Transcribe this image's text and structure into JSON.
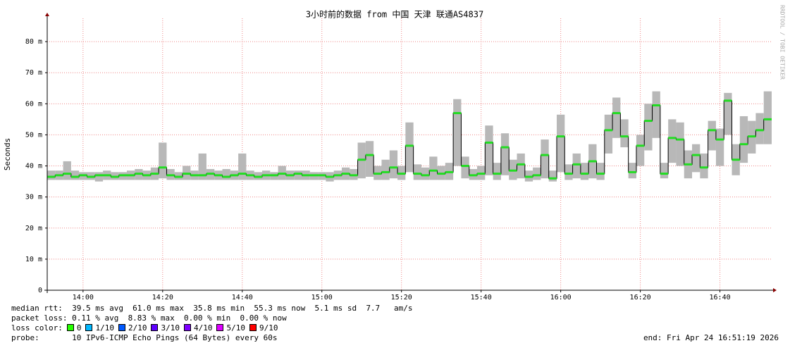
{
  "chart_data": {
    "type": "smokeping",
    "title": "3小时前的数据 from  中国 天津 联通AS4837",
    "y_label": "Seconds",
    "watermark": "RRDTOOL / TOBI OETIKER",
    "xlim": [
      "13:51",
      "16:53"
    ],
    "xticks": [
      "14:00",
      "14:20",
      "14:40",
      "15:00",
      "15:20",
      "15:40",
      "16:00",
      "16:20",
      "16:40"
    ],
    "ylim": [
      0,
      87.5
    ],
    "yticks": [
      {
        "value": 0,
        "label": "0"
      },
      {
        "value": 10,
        "label": "10 m"
      },
      {
        "value": 20,
        "label": "20 m"
      },
      {
        "value": 30,
        "label": "30 m"
      },
      {
        "value": 40,
        "label": "40 m"
      },
      {
        "value": 50,
        "label": "50 m"
      },
      {
        "value": 60,
        "label": "60 m"
      },
      {
        "value": 70,
        "label": "70 m"
      },
      {
        "value": 80,
        "label": "80 m"
      }
    ],
    "grid": true,
    "x": [
      "13:52",
      "13:54",
      "13:56",
      "13:58",
      "14:00",
      "14:02",
      "14:04",
      "14:06",
      "14:08",
      "14:10",
      "14:12",
      "14:14",
      "14:16",
      "14:18",
      "14:20",
      "14:22",
      "14:24",
      "14:26",
      "14:28",
      "14:30",
      "14:32",
      "14:34",
      "14:36",
      "14:38",
      "14:40",
      "14:42",
      "14:44",
      "14:46",
      "14:48",
      "14:50",
      "14:52",
      "14:54",
      "14:56",
      "14:58",
      "15:00",
      "15:02",
      "15:04",
      "15:06",
      "15:08",
      "15:10",
      "15:12",
      "15:14",
      "15:16",
      "15:18",
      "15:20",
      "15:22",
      "15:24",
      "15:26",
      "15:28",
      "15:30",
      "15:32",
      "15:34",
      "15:36",
      "15:38",
      "15:40",
      "15:42",
      "15:44",
      "15:46",
      "15:48",
      "15:50",
      "15:52",
      "15:54",
      "15:56",
      "15:58",
      "16:00",
      "16:02",
      "16:04",
      "16:06",
      "16:08",
      "16:10",
      "16:12",
      "16:14",
      "16:16",
      "16:18",
      "16:20",
      "16:22",
      "16:24",
      "16:26",
      "16:28",
      "16:30",
      "16:32",
      "16:34",
      "16:36",
      "16:38",
      "16:40",
      "16:42",
      "16:44",
      "16:46",
      "16:48",
      "16:50",
      "16:52"
    ],
    "median": {
      "color": "#22dd22",
      "line_color": "#000000",
      "values": [
        36.5,
        37,
        37.5,
        36.5,
        37,
        36.5,
        37,
        37,
        36.5,
        37,
        37,
        37.5,
        37,
        37.5,
        39.5,
        37,
        36.5,
        37.5,
        37,
        37,
        37.5,
        37,
        36.5,
        37,
        37.5,
        37,
        36.5,
        37,
        37,
        37.5,
        37,
        37.5,
        37,
        37,
        37,
        36.5,
        37,
        37.5,
        37,
        42,
        43.5,
        37.5,
        38,
        39.5,
        37.5,
        46.5,
        37.5,
        37,
        38.5,
        37.5,
        38,
        57,
        40,
        37,
        37.5,
        47.5,
        37.5,
        46,
        38.5,
        40.5,
        36.5,
        37,
        43.5,
        36,
        49.5,
        37.5,
        40.5,
        37.5,
        41.5,
        37.5,
        51.5,
        57,
        49.5,
        38,
        46.5,
        54.5,
        59.5,
        37.5,
        49,
        48.5,
        40.5,
        43.5,
        39.5,
        51.5,
        48.5,
        61,
        42,
        47,
        49.5,
        51.5,
        55
      ]
    },
    "smoke": {
      "color": "#b8b8b8",
      "min": [
        35.5,
        35.5,
        35.5,
        35.5,
        35.5,
        35.5,
        35,
        35.5,
        35.5,
        35.5,
        35.5,
        35.5,
        35.5,
        35.5,
        36,
        35.5,
        35.5,
        35.5,
        35.5,
        35.5,
        35.5,
        35.5,
        35.5,
        35.5,
        35.5,
        35.5,
        35.5,
        35.5,
        35.5,
        35.5,
        35.5,
        35.5,
        35.5,
        35.5,
        35.5,
        35,
        35.5,
        35.5,
        35.5,
        36,
        36.5,
        35.5,
        35.5,
        36,
        35.5,
        38,
        35.5,
        35.5,
        35.5,
        35.5,
        35.5,
        40,
        36,
        35.5,
        35.5,
        37,
        35.5,
        37,
        35.5,
        36,
        35,
        35.5,
        36,
        35,
        38,
        35.5,
        36,
        35.5,
        36,
        35.5,
        44,
        49,
        46,
        36,
        40,
        45,
        49,
        36,
        41,
        40,
        36,
        38,
        36,
        45,
        40,
        50,
        37,
        41,
        44,
        47,
        47
      ],
      "max": [
        38.5,
        38.5,
        41.5,
        38.5,
        38,
        38,
        38,
        38.5,
        38,
        38,
        38.5,
        39,
        38.5,
        39.5,
        47.5,
        39,
        38,
        40,
        38.5,
        44,
        39,
        38.5,
        39,
        38.5,
        44,
        38.5,
        38,
        38.5,
        38,
        40,
        38.5,
        38.5,
        38.5,
        38,
        38,
        38,
        38.5,
        39.5,
        39,
        47.5,
        48,
        40,
        42,
        45,
        40,
        54,
        40.5,
        39.5,
        43,
        40,
        41,
        61.5,
        43,
        39,
        40,
        53,
        41,
        50.5,
        42,
        44,
        38.5,
        39.5,
        48.5,
        38.5,
        56.5,
        40.5,
        44,
        41,
        47,
        41,
        56.5,
        62,
        55,
        41,
        50,
        60,
        64,
        41,
        55,
        54,
        45,
        47,
        44,
        54.5,
        52,
        63.5,
        47,
        56,
        54.5,
        57,
        64
      ]
    },
    "stats": {
      "median_rtt": "median rtt:  39.5 ms avg  61.0 ms max  35.8 ms min  55.3 ms now  5.1 ms sd  7.7   am/s",
      "packet_loss": "packet loss: 0.11 % avg  8.83 % max  0.00 % min  0.00 % now",
      "loss_color_label": "loss color:",
      "loss_colors": [
        {
          "label": "0",
          "color": "#26ff00"
        },
        {
          "label": "1/10",
          "color": "#00b8ff"
        },
        {
          "label": "2/10",
          "color": "#0059ff"
        },
        {
          "label": "3/10",
          "color": "#5e00ff"
        },
        {
          "label": "4/10",
          "color": "#7e00ff"
        },
        {
          "label": "5/10",
          "color": "#dd00ff"
        },
        {
          "label": "9/10",
          "color": "#ff0000"
        }
      ],
      "probe": "probe:       10 IPv6-ICMP Echo Pings (64 Bytes) every 60s",
      "end": "end: Fri Apr 24 16:51:19 2026"
    }
  }
}
